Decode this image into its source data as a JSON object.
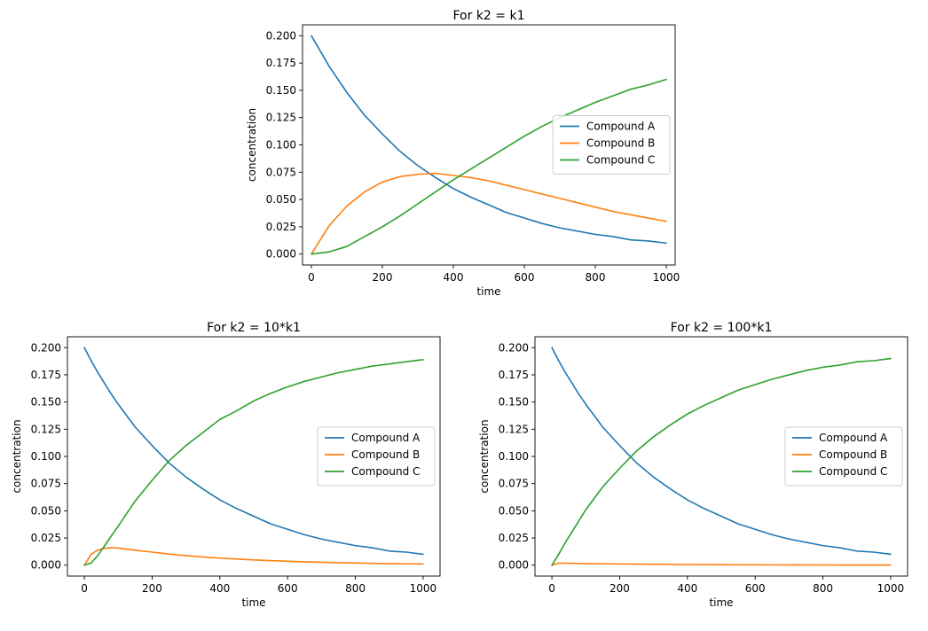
{
  "chart_data": [
    {
      "type": "line",
      "title": "For k2 = k1",
      "xlabel": "time",
      "ylabel": "concentration",
      "xlim": [
        -25,
        1025
      ],
      "ylim": [
        -0.01,
        0.21
      ],
      "xticks": [
        0,
        200,
        400,
        600,
        800,
        1000
      ],
      "xtick_labels": [
        "0",
        "200",
        "400",
        "600",
        "800",
        "1000"
      ],
      "yticks": [
        0,
        0.025,
        0.05,
        0.075,
        0.1,
        0.125,
        0.15,
        0.175,
        0.2
      ],
      "ytick_labels": [
        "0.000",
        "0.025",
        "0.050",
        "0.075",
        "0.100",
        "0.125",
        "0.150",
        "0.175",
        "0.200"
      ],
      "grid": false,
      "legend_position": "center-right",
      "x": [
        0,
        50,
        100,
        150,
        200,
        250,
        300,
        350,
        400,
        450,
        500,
        550,
        600,
        650,
        700,
        750,
        800,
        850,
        900,
        950,
        1000
      ],
      "series": [
        {
          "name": "Compound A",
          "color": "#1f77b4",
          "values": [
            0.2,
            0.172,
            0.148,
            0.127,
            0.11,
            0.094,
            0.081,
            0.07,
            0.06,
            0.052,
            0.045,
            0.038,
            0.033,
            0.028,
            0.024,
            0.021,
            0.018,
            0.016,
            0.013,
            0.012,
            0.01
          ]
        },
        {
          "name": "Compound B",
          "color": "#ff7f0e",
          "values": [
            0.0,
            0.026,
            0.044,
            0.057,
            0.066,
            0.071,
            0.073,
            0.074,
            0.072,
            0.07,
            0.067,
            0.063,
            0.059,
            0.055,
            0.051,
            0.047,
            0.043,
            0.039,
            0.036,
            0.033,
            0.03
          ]
        },
        {
          "name": "Compound C",
          "color": "#2ca02c",
          "values": [
            0.0,
            0.002,
            0.007,
            0.016,
            0.025,
            0.035,
            0.046,
            0.057,
            0.068,
            0.078,
            0.088,
            0.098,
            0.108,
            0.117,
            0.125,
            0.132,
            0.139,
            0.145,
            0.151,
            0.155,
            0.16
          ]
        }
      ]
    },
    {
      "type": "line",
      "title": "For k2 = 10*k1",
      "xlabel": "time",
      "ylabel": "concentration",
      "xlim": [
        -50,
        1050
      ],
      "ylim": [
        -0.01,
        0.21
      ],
      "xticks": [
        0,
        200,
        400,
        600,
        800,
        1000
      ],
      "xtick_labels": [
        "0",
        "200",
        "400",
        "600",
        "800",
        "1000"
      ],
      "yticks": [
        0,
        0.025,
        0.05,
        0.075,
        0.1,
        0.125,
        0.15,
        0.175,
        0.2
      ],
      "ytick_labels": [
        "0.000",
        "0.025",
        "0.050",
        "0.075",
        "0.100",
        "0.125",
        "0.150",
        "0.175",
        "0.200"
      ],
      "grid": false,
      "legend_position": "center-right",
      "x": [
        0,
        20,
        40,
        60,
        80,
        100,
        150,
        200,
        250,
        300,
        350,
        400,
        450,
        500,
        550,
        600,
        650,
        700,
        750,
        800,
        850,
        900,
        950,
        1000
      ],
      "series": [
        {
          "name": "Compound A",
          "color": "#1f77b4",
          "values": [
            0.2,
            0.188,
            0.177,
            0.167,
            0.157,
            0.148,
            0.127,
            0.11,
            0.094,
            0.081,
            0.07,
            0.06,
            0.052,
            0.045,
            0.038,
            0.033,
            0.028,
            0.024,
            0.021,
            0.018,
            0.016,
            0.013,
            0.012,
            0.01
          ]
        },
        {
          "name": "Compound B",
          "color": "#ff7f0e",
          "values": [
            0.0,
            0.01,
            0.014,
            0.0155,
            0.016,
            0.0157,
            0.0138,
            0.012,
            0.0102,
            0.0088,
            0.0076,
            0.0065,
            0.0056,
            0.0048,
            0.0042,
            0.0036,
            0.0031,
            0.0027,
            0.0023,
            0.002,
            0.0017,
            0.0015,
            0.0013,
            0.0011
          ]
        },
        {
          "name": "Compound C",
          "color": "#2ca02c",
          "values": [
            0.0,
            0.002,
            0.009,
            0.018,
            0.027,
            0.036,
            0.059,
            0.078,
            0.096,
            0.11,
            0.122,
            0.134,
            0.142,
            0.151,
            0.158,
            0.164,
            0.169,
            0.173,
            0.177,
            0.18,
            0.183,
            0.185,
            0.187,
            0.189
          ]
        }
      ]
    },
    {
      "type": "line",
      "title": "For k2 = 100*k1",
      "xlabel": "time",
      "ylabel": "concentration",
      "xlim": [
        -50,
        1050
      ],
      "ylim": [
        -0.01,
        0.21
      ],
      "xticks": [
        0,
        200,
        400,
        600,
        800,
        1000
      ],
      "xtick_labels": [
        "0",
        "200",
        "400",
        "600",
        "800",
        "1000"
      ],
      "yticks": [
        0,
        0.025,
        0.05,
        0.075,
        0.1,
        0.125,
        0.15,
        0.175,
        0.2
      ],
      "ytick_labels": [
        "0.000",
        "0.025",
        "0.050",
        "0.075",
        "0.100",
        "0.125",
        "0.150",
        "0.175",
        "0.200"
      ],
      "grid": false,
      "legend_position": "center-right",
      "x": [
        0,
        20,
        40,
        60,
        80,
        100,
        150,
        200,
        250,
        300,
        350,
        400,
        450,
        500,
        550,
        600,
        650,
        700,
        750,
        800,
        850,
        900,
        950,
        1000
      ],
      "series": [
        {
          "name": "Compound A",
          "color": "#1f77b4",
          "values": [
            0.2,
            0.188,
            0.177,
            0.167,
            0.157,
            0.148,
            0.127,
            0.11,
            0.094,
            0.081,
            0.07,
            0.06,
            0.052,
            0.045,
            0.038,
            0.033,
            0.028,
            0.024,
            0.021,
            0.018,
            0.016,
            0.013,
            0.012,
            0.01
          ]
        },
        {
          "name": "Compound B",
          "color": "#ff7f0e",
          "values": [
            0.0,
            0.0019,
            0.0018,
            0.0017,
            0.0016,
            0.0015,
            0.0013,
            0.0011,
            0.00095,
            0.00082,
            0.00071,
            0.0006,
            0.00052,
            0.00045,
            0.00039,
            0.00033,
            0.00028,
            0.00024,
            0.00021,
            0.00018,
            0.00016,
            0.00013,
            0.00012,
            0.0001
          ]
        },
        {
          "name": "Compound C",
          "color": "#2ca02c",
          "values": [
            0.0,
            0.01,
            0.021,
            0.031,
            0.041,
            0.051,
            0.072,
            0.089,
            0.105,
            0.118,
            0.129,
            0.139,
            0.147,
            0.154,
            0.161,
            0.166,
            0.171,
            0.175,
            0.179,
            0.182,
            0.184,
            0.187,
            0.188,
            0.19
          ]
        }
      ]
    }
  ]
}
